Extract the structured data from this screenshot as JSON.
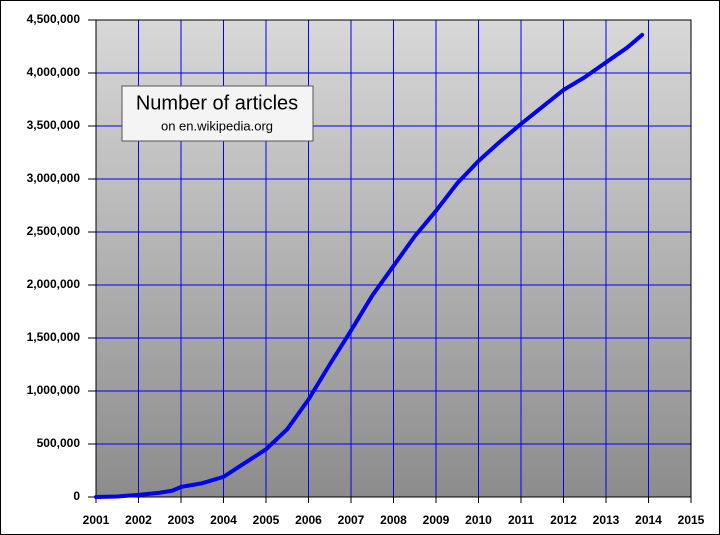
{
  "chart_data": {
    "type": "line",
    "annotations": [
      "Number of articles",
      "on en.wikipedia.org"
    ],
    "series": [
      {
        "color": "#0000ee",
        "x": [
          2001.0,
          2001.5,
          2002.0,
          2002.5,
          2002.8,
          2003.0,
          2003.5,
          2004.0,
          2004.5,
          2005.0,
          2005.5,
          2006.0,
          2006.5,
          2007.0,
          2007.5,
          2008.0,
          2008.5,
          2009.0,
          2009.5,
          2010.0,
          2010.5,
          2011.0,
          2011.5,
          2012.0,
          2012.5,
          2013.0,
          2013.5,
          2013.85
        ],
        "values": [
          0,
          5000,
          20000,
          40000,
          60000,
          95000,
          130000,
          190000,
          320000,
          450000,
          640000,
          920000,
          1250000,
          1570000,
          1900000,
          2180000,
          2460000,
          2700000,
          2960000,
          3170000,
          3350000,
          3520000,
          3680000,
          3840000,
          3960000,
          4100000,
          4240000,
          4360000
        ]
      }
    ],
    "xlim": [
      2001,
      2015
    ],
    "xticks": [
      2001,
      2002,
      2003,
      2004,
      2005,
      2006,
      2007,
      2008,
      2009,
      2010,
      2011,
      2012,
      2013,
      2014,
      2015
    ],
    "ylim": [
      0,
      4500000
    ],
    "yticks": [
      0,
      {
        "value": 500000,
        "label": "500,000"
      },
      {
        "value": 1000000,
        "label": "1,000,000"
      },
      {
        "value": 1500000,
        "label": "1,500,000"
      },
      {
        "value": 2000000,
        "label": "2,000,000"
      },
      {
        "value": 2500000,
        "label": "2,500,000"
      },
      {
        "value": 3000000,
        "label": "3,000,000"
      },
      {
        "value": 3500000,
        "label": "3,500,000"
      },
      {
        "value": 4000000,
        "label": "4,000,000"
      },
      {
        "value": 4500000,
        "label": "4,500,000"
      }
    ],
    "grid": true,
    "grid_color": "#0000ff"
  }
}
